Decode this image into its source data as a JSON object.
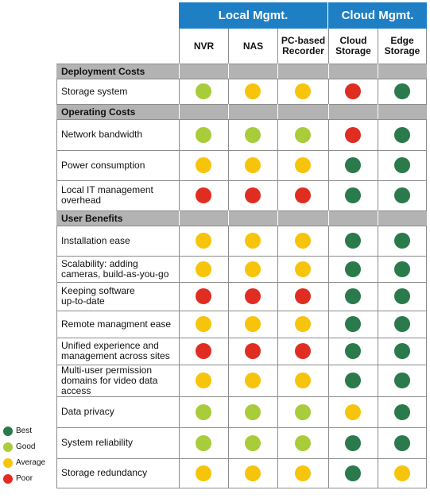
{
  "colors": {
    "header_blue": "#1f7fc4",
    "section_gray": "#b3b3b3",
    "grid_line": "#8c8c8c",
    "best": "#2a7a4c",
    "good": "#a8cc3a",
    "average": "#f7c40c",
    "poor": "#e02d22"
  },
  "groups": [
    {
      "label": "Local Mgmt.",
      "span": 3
    },
    {
      "label": "Cloud Mgmt.",
      "span": 2
    }
  ],
  "columns": [
    "NVR",
    "NAS",
    "PC-based\nRecorder",
    "Cloud\nStorage",
    "Edge\nStorage"
  ],
  "sections": [
    {
      "title": "Deployment Costs",
      "rows": [
        {
          "label": "Storage system",
          "ratings": [
            "good",
            "average",
            "average",
            "poor",
            "best"
          ]
        }
      ]
    },
    {
      "title": "Operating Costs",
      "rows": [
        {
          "label": "Network bandwidth",
          "ratings": [
            "good",
            "good",
            "good",
            "poor",
            "best"
          ]
        },
        {
          "label": "Power consumption",
          "ratings": [
            "average",
            "average",
            "average",
            "best",
            "best"
          ]
        },
        {
          "label": "Local IT management\noverhead",
          "ratings": [
            "poor",
            "poor",
            "poor",
            "best",
            "best"
          ]
        }
      ]
    },
    {
      "title": "User Benefits",
      "rows": [
        {
          "label": "Installation ease",
          "ratings": [
            "average",
            "average",
            "average",
            "best",
            "best"
          ]
        },
        {
          "label": "Scalability: adding\ncameras, build-as-you-go",
          "ratings": [
            "average",
            "average",
            "average",
            "best",
            "best"
          ]
        },
        {
          "label": "Keeping software\nup-to-date",
          "ratings": [
            "poor",
            "poor",
            "poor",
            "best",
            "best"
          ]
        },
        {
          "label": "Remote managment ease",
          "ratings": [
            "average",
            "average",
            "average",
            "best",
            "best"
          ]
        },
        {
          "label": "Unified experience and\nmanagement across sites",
          "ratings": [
            "poor",
            "poor",
            "poor",
            "best",
            "best"
          ]
        },
        {
          "label": "Multi-user permission\ndomains for video data\naccess",
          "ratings": [
            "average",
            "average",
            "average",
            "best",
            "best"
          ]
        },
        {
          "label": "Data privacy",
          "ratings": [
            "good",
            "good",
            "good",
            "average",
            "best"
          ]
        },
        {
          "label": "System reliability",
          "ratings": [
            "good",
            "good",
            "good",
            "best",
            "best"
          ]
        },
        {
          "label": "Storage redundancy",
          "ratings": [
            "average",
            "average",
            "average",
            "best",
            "average"
          ]
        }
      ]
    }
  ],
  "legend": [
    {
      "key": "best",
      "label": "Best"
    },
    {
      "key": "good",
      "label": "Good"
    },
    {
      "key": "average",
      "label": "Average"
    },
    {
      "key": "poor",
      "label": "Poor"
    }
  ]
}
